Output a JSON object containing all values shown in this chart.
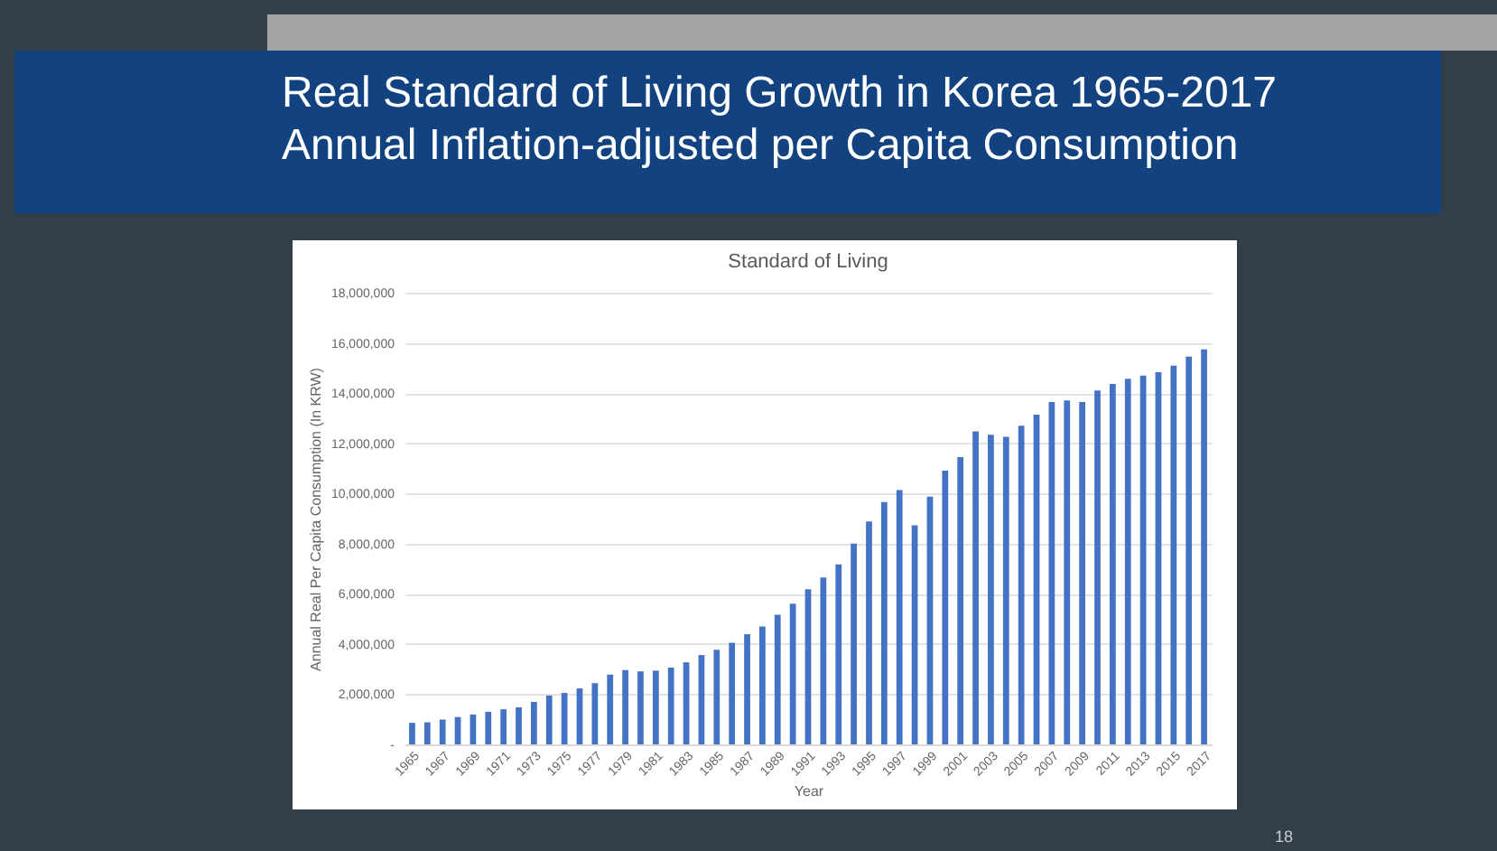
{
  "chart_data": {
    "type": "bar",
    "title": "Standard of Living",
    "annotations": [
      "Real Standard of Living Growth in Korea 1965-2017",
      "Annual Inflation-adjusted per Capita Consumption",
      "18"
    ],
    "xlabel": "Year",
    "ylabel": "Annual Real Per Capita Consumption (In KRW)",
    "categories": [
      "1965",
      null,
      "1967",
      null,
      "1969",
      null,
      "1971",
      null,
      "1973",
      null,
      "1975",
      null,
      "1977",
      null,
      "1979",
      null,
      "1981",
      null,
      "1983",
      null,
      "1985",
      null,
      "1987",
      null,
      "1989",
      null,
      "1991",
      null,
      "1993",
      null,
      "1995",
      null,
      "1997",
      null,
      "1999",
      null,
      "2001",
      null,
      "2003",
      null,
      "2005",
      null,
      "2007",
      null,
      "2009",
      null,
      "2011",
      null,
      "2013",
      null,
      "2015",
      null,
      "2017"
    ],
    "values": [
      860000,
      880000,
      990000,
      1090000,
      1190000,
      1300000,
      1400000,
      1480000,
      1690000,
      1950000,
      2050000,
      2230000,
      2440000,
      2780000,
      2960000,
      2910000,
      2940000,
      3060000,
      3270000,
      3560000,
      3770000,
      4050000,
      4390000,
      4700000,
      5170000,
      5610000,
      6180000,
      6650000,
      7170000,
      8000000,
      8880000,
      9660000,
      10130000,
      8730000,
      9870000,
      10910000,
      11450000,
      12470000,
      12340000,
      12260000,
      12700000,
      13140000,
      13640000,
      13710000,
      13640000,
      14100000,
      14360000,
      14570000,
      14700000,
      14830000,
      15090000,
      15450000,
      15740000
    ],
    "color": "#4472c4",
    "ylim": [
      0,
      18000000
    ],
    "yticks": [
      {
        "value": 0,
        "label": "-"
      },
      {
        "value": 2000000,
        "label": "2,000,000"
      },
      {
        "value": 4000000,
        "label": "4,000,000"
      },
      {
        "value": 6000000,
        "label": "6,000,000"
      },
      {
        "value": 8000000,
        "label": "8,000,000"
      },
      {
        "value": 10000000,
        "label": "10,000,000"
      },
      {
        "value": 12000000,
        "label": "12,000,000"
      },
      {
        "value": 14000000,
        "label": "14,000,000"
      },
      {
        "value": 16000000,
        "label": "16,000,000"
      },
      {
        "value": 18000000,
        "label": "18,000,000"
      }
    ],
    "grid": "y"
  }
}
